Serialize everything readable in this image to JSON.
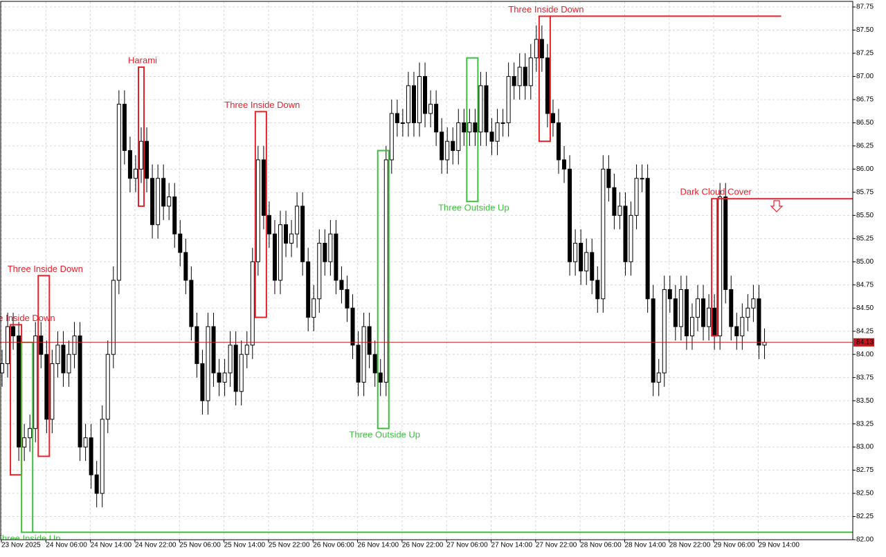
{
  "chart_data": {
    "type": "candlestick",
    "categories": [
      "23 Nov 2025",
      null,
      null,
      null,
      null,
      null,
      null,
      null,
      "24 Nov 06:00",
      null,
      null,
      null,
      null,
      null,
      null,
      null,
      "24 Nov 14:00",
      null,
      null,
      null,
      null,
      null,
      null,
      null,
      "24 Nov 22:00",
      null,
      null,
      null,
      null,
      null,
      null,
      null,
      "25 Nov 06:00",
      null,
      null,
      null,
      null,
      null,
      null,
      null,
      "25 Nov 14:00",
      null,
      null,
      null,
      null,
      null,
      null,
      null,
      "25 Nov 22:00",
      null,
      null,
      null,
      null,
      null,
      null,
      null,
      "26 Nov 06:00",
      null,
      null,
      null,
      null,
      null,
      null,
      null,
      "26 Nov 14:00",
      null,
      null,
      null,
      null,
      null,
      null,
      null,
      "26 Nov 22:00",
      null,
      null,
      null,
      null,
      null,
      null,
      null,
      "27 Nov 06:00",
      null,
      null,
      null,
      null,
      null,
      null,
      null,
      "27 Nov 14:00",
      null,
      null,
      null,
      null,
      null,
      null,
      null,
      "27 Nov 22:00",
      null,
      null,
      null,
      null,
      null,
      null,
      null,
      "28 Nov 06:00",
      null,
      null,
      null,
      null,
      null,
      null,
      null,
      "28 Nov 14:00",
      null,
      null,
      null,
      null,
      null,
      null,
      null,
      "28 Nov 22:00",
      null,
      null,
      null,
      null,
      null,
      null,
      null,
      "29 Nov 06:00",
      null,
      null,
      null,
      null,
      null,
      null,
      null,
      "29 Nov 14:00",
      null
    ],
    "open": [
      83.8,
      83.9,
      84.3,
      84.2,
      83.0,
      83.1,
      83.2,
      84.2,
      84.0,
      83.3,
      83.9,
      84.1,
      83.8,
      84.0,
      84.2,
      83.0,
      83.1,
      82.7,
      82.5,
      83.3,
      84.0,
      84.8,
      86.7,
      86.2,
      85.9,
      86.0,
      86.3,
      85.9,
      85.4,
      85.9,
      85.6,
      85.7,
      85.3,
      85.1,
      84.8,
      84.3,
      83.9,
      83.5,
      84.3,
      83.8,
      83.7,
      83.8,
      84.1,
      83.6,
      84.0,
      84.1,
      85.0,
      86.1,
      85.5,
      85.3,
      84.8,
      85.4,
      85.2,
      85.3,
      85.6,
      85.0,
      84.4,
      84.6,
      85.2,
      85.0,
      85.3,
      84.8,
      84.7,
      84.5,
      84.1,
      83.7,
      84.3,
      84.0,
      83.8,
      83.7,
      86.1,
      86.6,
      86.5,
      86.5,
      86.9,
      86.5,
      87.0,
      86.6,
      86.7,
      86.4,
      86.1,
      86.3,
      86.2,
      86.5,
      86.4,
      86.5,
      86.4,
      86.9,
      86.4,
      86.3,
      86.5,
      86.5,
      87.0,
      86.9,
      87.1,
      86.9,
      87.2,
      87.4,
      87.2,
      86.6,
      86.5,
      86.1,
      86.0,
      85.0,
      85.2,
      84.9,
      85.1,
      84.8,
      84.6,
      86.0,
      85.8,
      85.5,
      85.6,
      85.0,
      85.5,
      85.9,
      85.9,
      84.6,
      83.7,
      83.8,
      84.7,
      84.6,
      84.3,
      84.7,
      84.2,
      84.4,
      84.6,
      84.3,
      84.5,
      84.2,
      85.7,
      84.7,
      84.3,
      84.2,
      84.4,
      84.5,
      84.6,
      84.1
    ],
    "high": [
      84.05,
      84.45,
      84.45,
      84.35,
      83.25,
      83.35,
      84.35,
      84.35,
      84.15,
      84.05,
      84.25,
      84.25,
      84.15,
      84.35,
      84.35,
      83.25,
      83.25,
      82.85,
      83.45,
      84.15,
      84.95,
      86.85,
      86.85,
      86.35,
      86.15,
      86.45,
      86.45,
      86.05,
      86.05,
      86.05,
      85.85,
      85.85,
      85.45,
      85.25,
      84.95,
      84.45,
      84.05,
      84.45,
      84.45,
      83.95,
      83.95,
      84.25,
      84.25,
      84.15,
      84.25,
      85.15,
      86.25,
      86.25,
      85.65,
      85.45,
      85.55,
      85.55,
      85.45,
      85.75,
      85.75,
      85.15,
      84.75,
      85.35,
      85.35,
      85.45,
      85.45,
      84.95,
      84.85,
      84.65,
      84.25,
      84.45,
      84.45,
      84.15,
      83.95,
      86.25,
      86.75,
      86.75,
      86.65,
      87.05,
      87.05,
      87.15,
      87.15,
      86.85,
      86.85,
      86.55,
      86.45,
      86.45,
      86.65,
      86.65,
      86.65,
      86.65,
      87.05,
      87.05,
      86.55,
      86.65,
      86.65,
      87.15,
      87.15,
      87.25,
      87.25,
      87.35,
      87.55,
      87.55,
      87.35,
      86.75,
      86.65,
      86.25,
      86.15,
      85.35,
      85.35,
      85.25,
      85.25,
      84.95,
      86.15,
      86.15,
      85.95,
      85.75,
      85.75,
      85.65,
      86.05,
      86.05,
      86.05,
      84.75,
      83.95,
      84.85,
      84.85,
      84.75,
      84.85,
      84.85,
      84.55,
      84.75,
      84.75,
      84.65,
      84.65,
      85.85,
      85.85,
      84.85,
      84.45,
      84.55,
      84.65,
      84.75,
      84.75,
      84.28
    ],
    "low": [
      83.65,
      83.75,
      84.05,
      82.85,
      82.85,
      82.95,
      83.05,
      83.85,
      83.15,
      83.15,
      83.75,
      83.65,
      83.65,
      83.85,
      82.85,
      82.85,
      82.55,
      82.35,
      82.35,
      83.15,
      83.85,
      84.65,
      86.05,
      85.75,
      85.75,
      85.85,
      85.75,
      85.25,
      85.25,
      85.45,
      85.45,
      85.15,
      84.95,
      84.65,
      84.15,
      83.75,
      83.35,
      83.35,
      83.65,
      83.55,
      83.55,
      83.65,
      83.45,
      83.45,
      83.85,
      83.95,
      84.85,
      85.35,
      85.15,
      84.65,
      84.65,
      85.05,
      85.05,
      85.15,
      84.85,
      84.25,
      84.25,
      84.45,
      84.85,
      84.85,
      84.65,
      84.55,
      84.35,
      83.95,
      83.55,
      83.55,
      83.85,
      83.65,
      83.55,
      83.55,
      85.95,
      86.35,
      86.35,
      86.35,
      86.35,
      86.35,
      86.45,
      86.45,
      86.25,
      85.95,
      85.95,
      86.05,
      86.05,
      86.25,
      86.25,
      86.25,
      86.25,
      86.25,
      86.15,
      86.15,
      86.35,
      86.35,
      86.75,
      86.75,
      86.75,
      86.75,
      87.05,
      87.05,
      86.45,
      86.35,
      85.95,
      85.85,
      84.85,
      84.85,
      84.75,
      84.75,
      84.65,
      84.45,
      84.45,
      85.65,
      85.35,
      85.35,
      84.85,
      84.85,
      85.35,
      85.75,
      84.45,
      83.55,
      83.55,
      83.65,
      84.45,
      84.15,
      84.15,
      84.05,
      84.05,
      84.25,
      84.15,
      84.15,
      84.05,
      84.05,
      84.55,
      84.15,
      84.05,
      84.05,
      84.25,
      84.35,
      83.95,
      83.95
    ],
    "close": [
      83.9,
      84.3,
      84.2,
      83.0,
      83.1,
      83.2,
      84.2,
      84.0,
      83.3,
      83.9,
      84.1,
      83.8,
      84.0,
      84.2,
      83.0,
      83.1,
      82.7,
      82.5,
      83.3,
      84.0,
      84.8,
      86.7,
      86.2,
      85.9,
      86.0,
      86.3,
      85.9,
      85.4,
      85.9,
      85.6,
      85.7,
      85.3,
      85.1,
      84.8,
      84.3,
      83.9,
      83.5,
      84.3,
      83.8,
      83.7,
      83.8,
      84.1,
      83.6,
      84.0,
      84.1,
      85.0,
      86.1,
      85.5,
      85.3,
      84.8,
      85.4,
      85.2,
      85.3,
      85.6,
      85.0,
      84.4,
      84.6,
      85.2,
      85.0,
      85.3,
      84.8,
      84.7,
      84.5,
      84.1,
      83.7,
      84.3,
      84.0,
      83.8,
      83.7,
      86.1,
      86.6,
      86.5,
      86.5,
      86.9,
      86.5,
      87.0,
      86.6,
      86.7,
      86.4,
      86.1,
      86.3,
      86.2,
      86.5,
      86.4,
      86.5,
      86.4,
      86.9,
      86.4,
      86.3,
      86.5,
      86.5,
      87.0,
      86.9,
      87.1,
      86.9,
      87.2,
      87.4,
      87.2,
      86.6,
      86.5,
      86.1,
      86.0,
      85.0,
      85.2,
      84.9,
      85.1,
      84.8,
      84.6,
      86.0,
      85.8,
      85.5,
      85.6,
      85.0,
      85.5,
      85.9,
      85.9,
      84.6,
      83.7,
      83.8,
      84.7,
      84.6,
      84.3,
      84.7,
      84.2,
      84.4,
      84.6,
      84.3,
      84.5,
      84.2,
      85.7,
      84.7,
      84.3,
      84.2,
      84.4,
      84.5,
      84.6,
      84.1,
      84.13
    ],
    "up_color": "#ffffff",
    "down_color": "#000000",
    "wick_color": "#000000",
    "ylim": [
      82.0,
      87.81
    ],
    "yticks": [
      {
        "value": 82.0,
        "label": "82.00"
      },
      82.25,
      {
        "value": 82.5,
        "label": "82.50"
      },
      82.75,
      {
        "value": 83.0,
        "label": "83.00"
      },
      83.25,
      {
        "value": 83.5,
        "label": "83.50"
      },
      83.75,
      {
        "value": 84.0,
        "label": "84.00"
      },
      84.25,
      {
        "value": 84.5,
        "label": "84.50"
      },
      84.75,
      {
        "value": 85.0,
        "label": "85.00"
      },
      85.25,
      {
        "value": 85.5,
        "label": "85.50"
      },
      85.75,
      {
        "value": 86.0,
        "label": "86.00"
      },
      86.25,
      {
        "value": 86.5,
        "label": "86.50"
      },
      86.75,
      {
        "value": 87.0,
        "label": "87.00"
      },
      87.25,
      {
        "value": 87.5,
        "label": "87.50"
      },
      87.75
    ],
    "grid": true,
    "last_price": 84.13,
    "last_price_color": "#c0181f",
    "patterns": [
      {
        "label": "Three Inside Down",
        "color": "#e8202a",
        "position": "above",
        "candles": [
          2,
          3
        ],
        "low": 82.7,
        "high": 84.32
      },
      {
        "label": "Three Inside Up",
        "color": "#3cbf3c",
        "position": "below",
        "candles": [
          4,
          5
        ],
        "low": 82.08,
        "high": 84.13,
        "line": {
          "level": 82.08
        }
      },
      {
        "label": "Three Inside Down",
        "color": "#e8202a",
        "position": "above",
        "candles": [
          7,
          8
        ],
        "low": 82.9,
        "high": 84.85
      },
      {
        "label": "Harami",
        "color": "#e8202a",
        "position": "above",
        "candles": [
          25,
          25
        ],
        "low": 85.6,
        "high": 87.1
      },
      {
        "label": "Three Inside Down",
        "color": "#e8202a",
        "position": "above",
        "candles": [
          46,
          47
        ],
        "low": 84.4,
        "high": 86.62
      },
      {
        "label": "Three Outside Up",
        "color": "#3cbf3c",
        "position": "below",
        "candles": [
          68,
          69
        ],
        "low": 83.2,
        "high": 86.2
      },
      {
        "label": "Three Outside Up",
        "color": "#3cbf3c",
        "position": "below",
        "candles": [
          84,
          85
        ],
        "low": 85.65,
        "high": 87.2
      },
      {
        "label": "Three Inside Down",
        "color": "#e8202a",
        "position": "above",
        "candles": [
          97,
          98
        ],
        "low": 86.3,
        "high": 87.65,
        "line": {
          "level": 87.65,
          "end": 140
        }
      },
      {
        "label": "Dark Cloud Cover",
        "color": "#e8202a",
        "position": "above",
        "candles": [
          128,
          128
        ],
        "low": 84.2,
        "high": 85.68,
        "line": {
          "level": 85.68
        }
      }
    ]
  }
}
